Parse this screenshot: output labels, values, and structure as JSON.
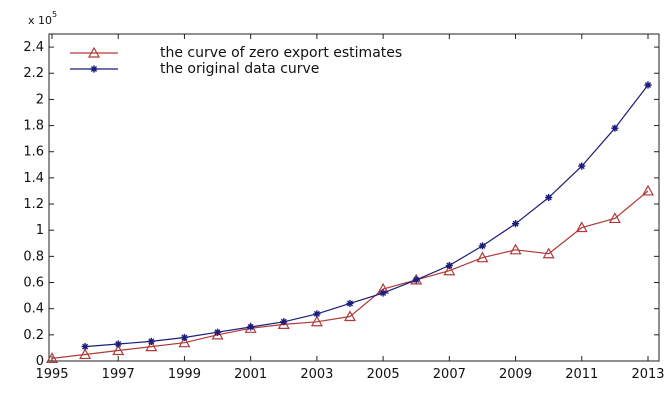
{
  "chart_data": {
    "type": "line",
    "title": "",
    "xlabel": "",
    "ylabel": "",
    "y_scale_label": "x 10",
    "y_scale_exponent": "5",
    "x": [
      1995,
      1996,
      1997,
      1998,
      1999,
      2000,
      2001,
      2002,
      2003,
      2004,
      2005,
      2006,
      2007,
      2008,
      2009,
      2010,
      2011,
      2012,
      2013
    ],
    "xticks": [
      "1995",
      "1997",
      "1999",
      "2001",
      "2003",
      "2005",
      "2007",
      "2009",
      "2011",
      "2013"
    ],
    "yticks": [
      "0",
      "0.2",
      "0.4",
      "0.6",
      "0.8",
      "1",
      "1.2",
      "1.4",
      "1.6",
      "1.8",
      "2",
      "2.2",
      "2.4"
    ],
    "xlim": [
      1995,
      2013
    ],
    "ylim": [
      0,
      2.5
    ],
    "grid": false,
    "legend_position": "top-left",
    "series": [
      {
        "name": "the curve of zero export estimates",
        "color": "#b03a3a",
        "marker": "triangle",
        "x": [
          1995,
          1996,
          1997,
          1998,
          1999,
          2000,
          2001,
          2002,
          2003,
          2004,
          2005,
          2006,
          2007,
          2008,
          2009,
          2010,
          2011,
          2012,
          2013
        ],
        "values": [
          0.02,
          0.05,
          0.08,
          0.11,
          0.14,
          0.2,
          0.25,
          0.28,
          0.3,
          0.34,
          0.55,
          0.62,
          0.69,
          0.79,
          0.85,
          0.82,
          1.02,
          1.09,
          1.3
        ]
      },
      {
        "name": "the original data curve",
        "color": "#1c1c7a",
        "marker": "star",
        "x": [
          1996,
          1997,
          1998,
          1999,
          2000,
          2001,
          2002,
          2003,
          2004,
          2005,
          2006,
          2007,
          2008,
          2009,
          2010,
          2011,
          2012,
          2013
        ],
        "values": [
          0.11,
          0.13,
          0.15,
          0.18,
          0.22,
          0.26,
          0.3,
          0.36,
          0.44,
          0.52,
          0.62,
          0.73,
          0.88,
          1.05,
          1.25,
          1.49,
          1.78,
          2.11
        ]
      }
    ]
  }
}
